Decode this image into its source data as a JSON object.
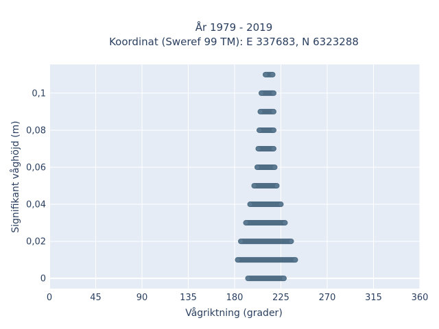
{
  "chart_data": {
    "type": "scatter",
    "title_lines": [
      "År 1979 - 2019",
      "Koordinat (Sweref 99 TM): E 337683, N 6323288"
    ],
    "xlabel": "Vågriktning (grader)",
    "ylabel": "Signifikant våghöjd (m)",
    "xlim": [
      0,
      360
    ],
    "ylim": [
      -0.0055,
      0.1155
    ],
    "xticks": [
      0,
      45,
      90,
      135,
      180,
      225,
      270,
      315,
      360
    ],
    "xtick_labels": [
      "0",
      "45",
      "90",
      "135",
      "180",
      "225",
      "270",
      "315",
      "360"
    ],
    "yticks": [
      0,
      0.02,
      0.04,
      0.06,
      0.08,
      0.1
    ],
    "ytick_labels": [
      "0",
      "0,02",
      "0,04",
      "0,06",
      "0,08",
      "0,1"
    ],
    "grid": true,
    "series": [
      {
        "marker_color": "#34566f",
        "bands": [
          {
            "y": 0.0,
            "x_min": 193,
            "x_max": 228
          },
          {
            "y": 0.01,
            "x_min": 183,
            "x_max": 239
          },
          {
            "y": 0.02,
            "x_min": 186,
            "x_max": 235
          },
          {
            "y": 0.03,
            "x_min": 191,
            "x_max": 229
          },
          {
            "y": 0.04,
            "x_min": 195,
            "x_max": 225
          },
          {
            "y": 0.05,
            "x_min": 199,
            "x_max": 221
          },
          {
            "y": 0.06,
            "x_min": 202,
            "x_max": 219
          },
          {
            "y": 0.07,
            "x_min": 203,
            "x_max": 218
          },
          {
            "y": 0.08,
            "x_min": 204,
            "x_max": 218
          },
          {
            "y": 0.09,
            "x_min": 205,
            "x_max": 218
          },
          {
            "y": 0.1,
            "x_min": 206,
            "x_max": 218
          },
          {
            "y": 0.11,
            "x_min": 210,
            "x_max": 217
          }
        ]
      }
    ]
  }
}
